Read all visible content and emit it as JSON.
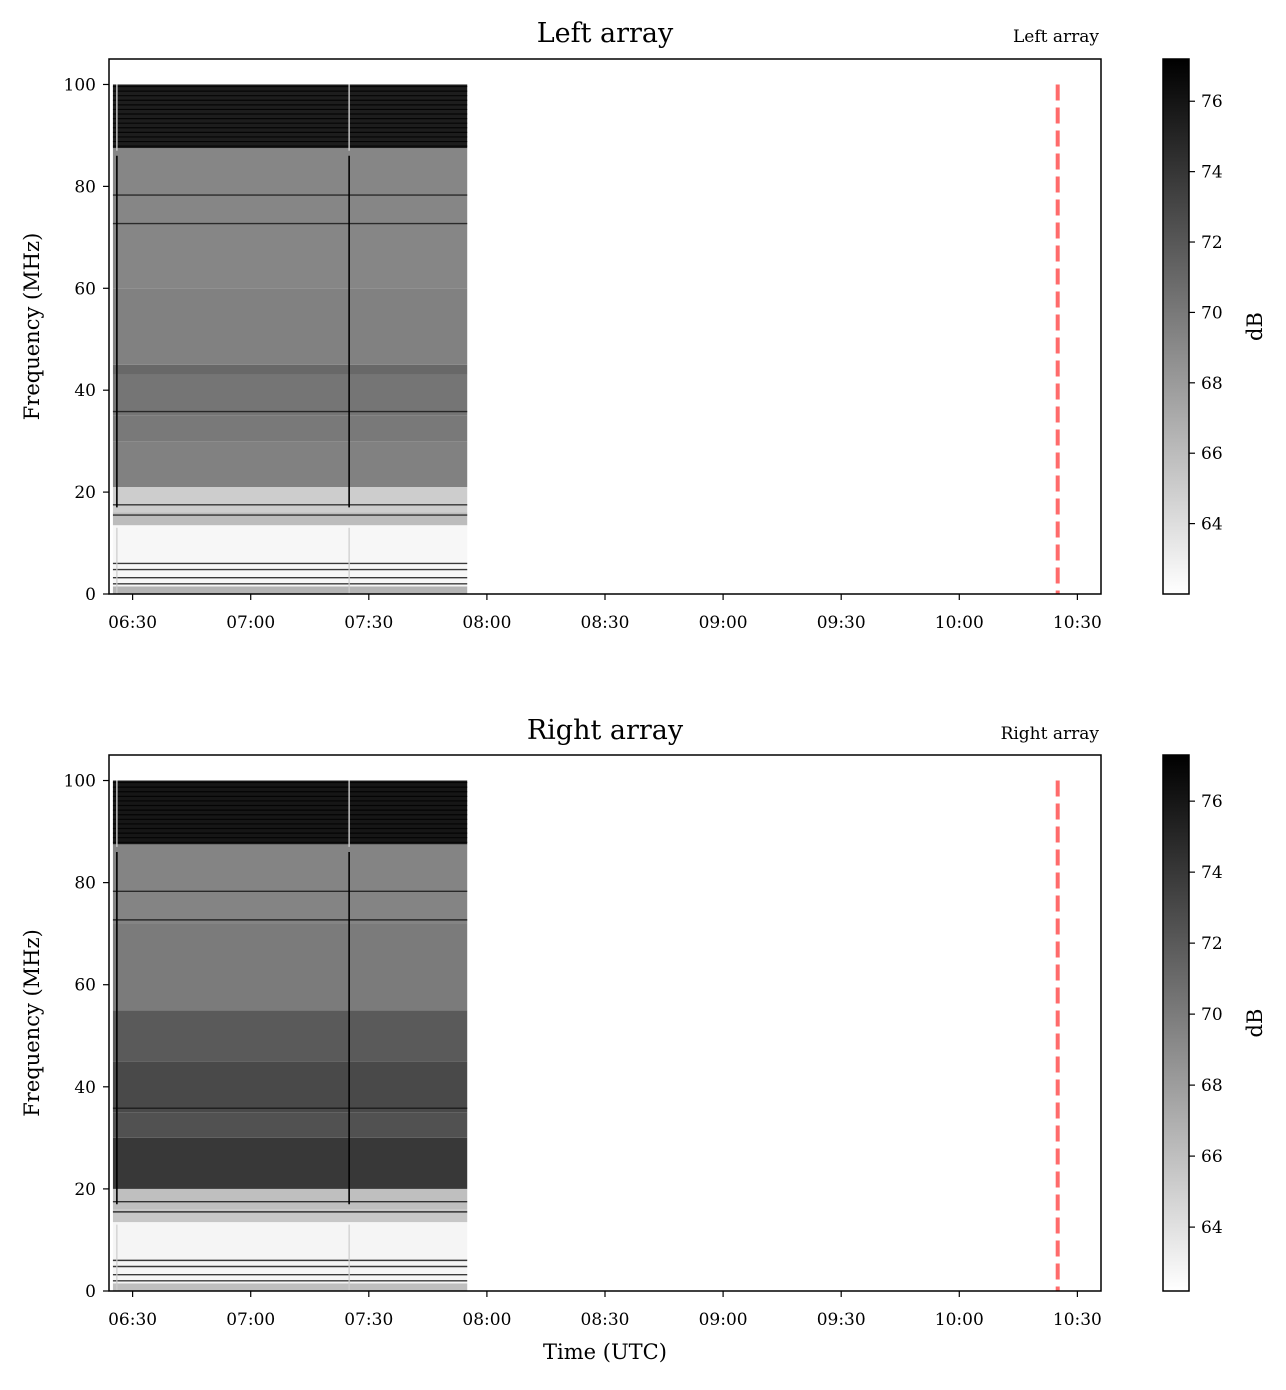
{
  "chart_data": [
    {
      "type": "heatmap",
      "title": "Left array",
      "corner_label": "Left array",
      "ylabel": "Frequency (MHz)",
      "xlabel": "",
      "x_ticks": [
        "06:30",
        "07:00",
        "07:30",
        "08:00",
        "08:30",
        "09:00",
        "09:30",
        "10:00",
        "10:30"
      ],
      "y_ticks": [
        0,
        20,
        40,
        60,
        80,
        100
      ],
      "ylim": [
        0,
        105
      ],
      "xlim": [
        "06:24",
        "10:36"
      ],
      "data_time_range": [
        "06:25",
        "07:55"
      ],
      "data_freq_range": [
        0,
        100
      ],
      "marker_time": "10:25",
      "marker_color": "#ff6b6b",
      "colorbar": {
        "label": "dB",
        "min": 62,
        "max": 77.2,
        "ticks": [
          64,
          66,
          68,
          70,
          72,
          74,
          76
        ],
        "colormap": "gray_r"
      },
      "bands": [
        {
          "from": 0,
          "to": 1.5,
          "db": 66.5
        },
        {
          "from": 1.5,
          "to": 13.5,
          "db": 62.5
        },
        {
          "from": 13.5,
          "to": 16,
          "db": 66
        },
        {
          "from": 16,
          "to": 21,
          "db": 65
        },
        {
          "from": 21,
          "to": 30,
          "db": 69.5
        },
        {
          "from": 30,
          "to": 35,
          "db": 70
        },
        {
          "from": 35,
          "to": 43,
          "db": 70.2
        },
        {
          "from": 43,
          "to": 45,
          "db": 71
        },
        {
          "from": 45,
          "to": 60,
          "db": 69.5
        },
        {
          "from": 60,
          "to": 87.5,
          "db": 69.2
        },
        {
          "from": 87.5,
          "to": 100,
          "db": 75.5
        }
      ],
      "lines": [
        2,
        3.2,
        4.8,
        6,
        15.5,
        17.5,
        35.8,
        72.7,
        78.3
      ],
      "transient_times": [
        "06:26",
        "07:25"
      ]
    },
    {
      "type": "heatmap",
      "title": "Right array",
      "corner_label": "Right array",
      "ylabel": "Frequency (MHz)",
      "xlabel": "Time (UTC)",
      "x_ticks": [
        "06:30",
        "07:00",
        "07:30",
        "08:00",
        "08:30",
        "09:00",
        "09:30",
        "10:00",
        "10:30"
      ],
      "y_ticks": [
        0,
        20,
        40,
        60,
        80,
        100
      ],
      "ylim": [
        0,
        105
      ],
      "xlim": [
        "06:24",
        "10:36"
      ],
      "data_time_range": [
        "06:25",
        "07:55"
      ],
      "data_freq_range": [
        0,
        100
      ],
      "marker_time": "10:25",
      "marker_color": "#ff6b6b",
      "colorbar": {
        "label": "dB",
        "min": 62.2,
        "max": 77.3,
        "ticks": [
          64,
          66,
          68,
          70,
          72,
          74,
          76
        ],
        "colormap": "gray_r"
      },
      "bands": [
        {
          "from": 0,
          "to": 1.5,
          "db": 66
        },
        {
          "from": 1.5,
          "to": 13.5,
          "db": 62.8
        },
        {
          "from": 13.5,
          "to": 16,
          "db": 65.5
        },
        {
          "from": 16,
          "to": 20,
          "db": 66
        },
        {
          "from": 20,
          "to": 30,
          "db": 74
        },
        {
          "from": 30,
          "to": 35,
          "db": 72.5
        },
        {
          "from": 35,
          "to": 45,
          "db": 73
        },
        {
          "from": 45,
          "to": 55,
          "db": 72
        },
        {
          "from": 55,
          "to": 72,
          "db": 70
        },
        {
          "from": 72,
          "to": 87.5,
          "db": 69.5
        },
        {
          "from": 87.5,
          "to": 100,
          "db": 76
        }
      ],
      "lines": [
        2,
        3.2,
        4.8,
        6,
        15.5,
        17.5,
        35.8,
        72.7,
        78.3
      ],
      "transient_times": [
        "06:26",
        "07:25"
      ]
    }
  ]
}
